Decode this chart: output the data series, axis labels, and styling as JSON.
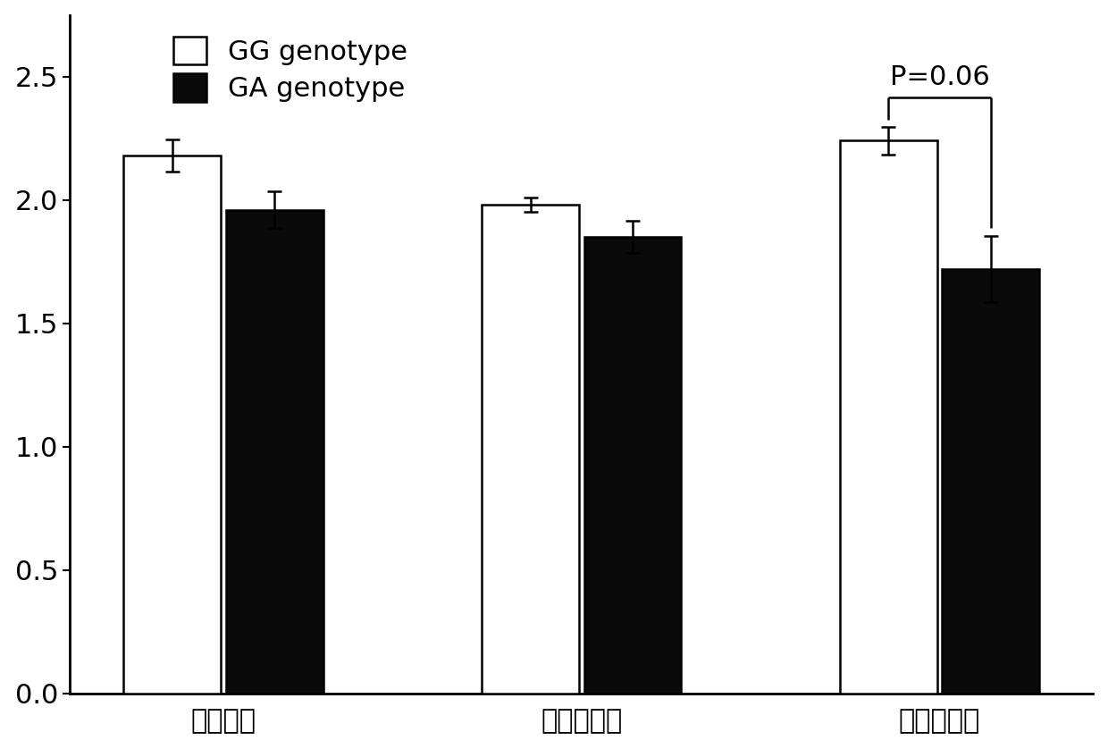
{
  "categories": [
    "总产羔数",
    "初产产羔数",
    "经产产羔数"
  ],
  "GG_values": [
    2.18,
    1.98,
    2.24
  ],
  "GA_values": [
    1.96,
    1.85,
    1.72
  ],
  "GG_errors": [
    0.065,
    0.028,
    0.055
  ],
  "GA_errors": [
    0.075,
    0.065,
    0.135
  ],
  "GG_color": "#ffffff",
  "GA_color": "#0a0a0a",
  "bar_edge_color": "#000000",
  "bar_width": 0.38,
  "group_centers": [
    0.6,
    2.0,
    3.4
  ],
  "xlim": [
    0.0,
    4.0
  ],
  "ylim": [
    0.0,
    2.75
  ],
  "yticks": [
    0.0,
    0.5,
    1.0,
    1.5,
    2.0,
    2.5
  ],
  "legend_GG": "GG genotype",
  "legend_GA": "GA genotype",
  "p_text": "P=0.06",
  "p_bracket_group": 2,
  "background_color": "#ffffff",
  "axis_linewidth": 2.0,
  "bar_linewidth": 1.8,
  "error_linewidth": 1.8,
  "error_capsize": 6
}
